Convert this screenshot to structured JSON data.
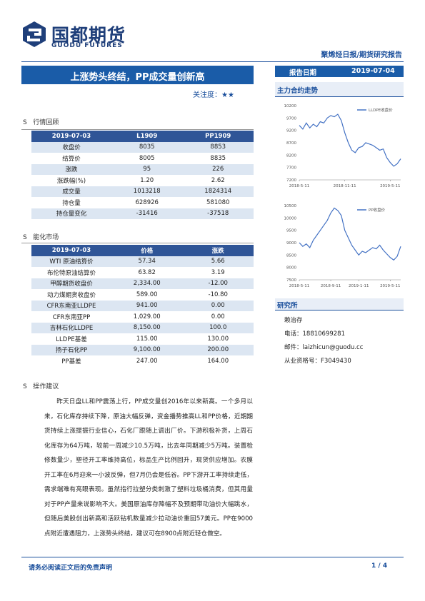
{
  "header": {
    "logo_cn": "国都期货",
    "logo_en": "GUODU FUTURES",
    "report_type": "聚烯烃日报/期货研究报告"
  },
  "title": "上涨势头终结，PP成交量创新高",
  "attention_label": "关注度：",
  "attention_stars": "★★",
  "report_date_label": "报告日期",
  "report_date": "2019-07-04",
  "sections": {
    "main_trend": "主力合约走势",
    "institute": "研究所",
    "market_review": "行情回顾",
    "energy_market": "能化市场",
    "advice": "操作建议"
  },
  "table1": {
    "header": [
      "2019-07-03",
      "L1909",
      "PP1909"
    ],
    "rows": [
      [
        "收盘价",
        "8035",
        "8853"
      ],
      [
        "结算价",
        "8005",
        "8835"
      ],
      [
        "涨跌",
        "95",
        "226"
      ],
      [
        "涨跌幅(%)",
        "1.20",
        "2.62"
      ],
      [
        "成交量",
        "1013218",
        "1824314"
      ],
      [
        "持仓量",
        "628926",
        "581080"
      ],
      [
        "持仓量变化",
        "-31416",
        "-37518"
      ]
    ]
  },
  "table2": {
    "header": [
      "2019-07-03",
      "价格",
      "涨跌"
    ],
    "rows": [
      [
        "WTI 原油结算价",
        "57.34",
        "5.66"
      ],
      [
        "布伦特原油结算价",
        "63.82",
        "3.19"
      ],
      [
        "甲醇期货收盘价",
        "2,334.00",
        "-12.00"
      ],
      [
        "动力煤期货收盘价",
        "589.00",
        "-10.80"
      ],
      [
        "CFR东南亚LLDPE",
        "941.00",
        "0.00"
      ],
      [
        "CFR东南亚PP",
        "1,029.00",
        "0.00"
      ],
      [
        "吉林石化LLDPE",
        "8,150.00",
        "100.0"
      ],
      [
        "LLDPE基差",
        "115.00",
        "130.00"
      ],
      [
        "扬子石化PP",
        "9,100.00",
        "200.00"
      ],
      [
        "PP基差",
        "247.00",
        "164.00"
      ]
    ]
  },
  "contact": {
    "name": "赖治存",
    "phone": "电话：18810699281",
    "email": "邮件：laizhicun@guodu.cc",
    "license": "从业资格号：F3049430"
  },
  "advice_text": "昨天日盘LL和PP震荡上行，PP成交量创2016年以来新高。一个多月以来，石化库存持续下降，原油大幅反弹，资金播势推高LL和PP价格，近期期货持续上涨提振行业信心，石化厂跟随上调出厂价。下游积极补货，上周石化库存为64万吨，较前一周减少10.5万吨，比去年同期减少5万吨。装置检修数量少，塑径开工率维持高位，标品生产比例回升，现货供应增加。农膜开工率在6月迎来一小波反弹，但7月仍会是低谷。PP下游开工率持续走低，需求端难有亮眼表现。虽然指行拉塑分类刺激了塑料垃圾桶消费，但其用量对于PP产量来说影响不大。美国原油库存降幅不及预期带动油价大幅跳水，但随后美股创出新高和活跃钻机数量减少拉动油价重回57美元。PP在9000点附近遭遇阻力，上涨势头终结，建议可在8900点附近轻仓做空。",
  "footer": {
    "disclaimer": "请务必阅读正文后的免责声明",
    "page": "1 / 4"
  },
  "chart_data": [
    {
      "type": "line",
      "series": [
        {
          "name": "LLDPE收盘价",
          "color": "#4472c4",
          "values": [
            9400,
            9250,
            9500,
            9300,
            9450,
            9350,
            9550,
            9500,
            9700,
            9800,
            9750,
            9850,
            9600,
            9100,
            8700,
            8400,
            8300,
            8500,
            8550,
            8700,
            8650,
            8600,
            8500,
            8400,
            8450,
            8100,
            7900,
            7750,
            7850,
            8050
          ]
        }
      ],
      "categories": [
        "2018-5-11",
        null,
        null,
        null,
        null,
        null,
        null,
        null,
        null,
        null,
        null,
        null,
        null,
        "2018-11-11",
        null,
        null,
        null,
        null,
        null,
        null,
        null,
        null,
        null,
        null,
        null,
        null,
        "2019-5-11",
        null,
        null,
        null
      ],
      "ylim": [
        7200,
        10200
      ],
      "yticks": [
        7200,
        7700,
        8200,
        8700,
        9200,
        9700,
        10200
      ],
      "grid": false
    },
    {
      "type": "line",
      "series": [
        {
          "name": "PP收盘价",
          "color": "#4472c4",
          "values": [
            9000,
            8850,
            8950,
            8800,
            9100,
            9300,
            9500,
            9700,
            9900,
            10200,
            10400,
            10300,
            10100,
            9500,
            9200,
            8900,
            8700,
            8500,
            8650,
            8600,
            8700,
            8800,
            8750,
            8900,
            8700,
            8550,
            8400,
            8300,
            8450,
            8850
          ]
        }
      ],
      "categories": [
        "2018-5-11",
        null,
        null,
        null,
        null,
        null,
        null,
        null,
        null,
        "2018-9-11",
        null,
        null,
        null,
        null,
        null,
        null,
        null,
        "2019-1-11",
        null,
        null,
        null,
        null,
        null,
        null,
        null,
        null,
        "2019-5-11",
        null,
        null,
        null
      ],
      "ylim": [
        7500,
        10500
      ],
      "yticks": [
        7500,
        8000,
        8500,
        9000,
        9500,
        10000,
        10500
      ],
      "grid": false
    }
  ]
}
